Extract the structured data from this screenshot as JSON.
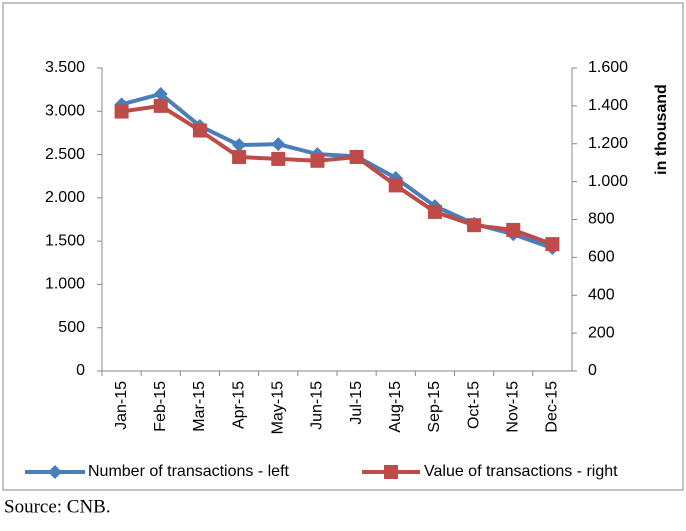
{
  "chart_data": {
    "type": "line",
    "categories": [
      "Jan-15",
      "Feb-15",
      "Mar-15",
      "Apr-15",
      "May-15",
      "Jun-15",
      "Jul-15",
      "Aug-15",
      "Sep-15",
      "Oct-15",
      "Nov-15",
      "Dec-15"
    ],
    "series": [
      {
        "name": "Number of transactions - left",
        "color": "#4a7ebb",
        "marker": "diamond",
        "values": [
          3080,
          3200,
          2830,
          2610,
          2620,
          2505,
          2480,
          2230,
          1905,
          1700,
          1580,
          1420
        ]
      },
      {
        "name": "Value of transactions - right",
        "color": "#be4b48",
        "marker": "square",
        "axis": "y2",
        "values": [
          1370,
          1400,
          1270,
          1130,
          1120,
          1110,
          1130,
          980,
          840,
          770,
          745,
          670
        ]
      }
    ],
    "ylim": [
      0,
      3500
    ],
    "yticks": [
      0,
      500,
      {
        "value": 1000,
        "label": "1.000"
      },
      {
        "value": 1500,
        "label": "1.500"
      },
      {
        "value": 2000,
        "label": "2.000"
      },
      {
        "value": 2500,
        "label": "2.500"
      },
      {
        "value": 3000,
        "label": "3.000"
      },
      {
        "value": 3500,
        "label": "3.500"
      }
    ],
    "y2lim": [
      0,
      1600
    ],
    "y2ticks": [
      0,
      200,
      400,
      600,
      800,
      {
        "value": 1000,
        "label": "1.000"
      },
      {
        "value": 1200,
        "label": "1.200"
      },
      {
        "value": 1400,
        "label": "1.400"
      },
      {
        "value": 1600,
        "label": "1.600"
      }
    ],
    "y2label": "in thousand",
    "legend": "bottom",
    "grid": false
  },
  "source": "Source: CNB."
}
